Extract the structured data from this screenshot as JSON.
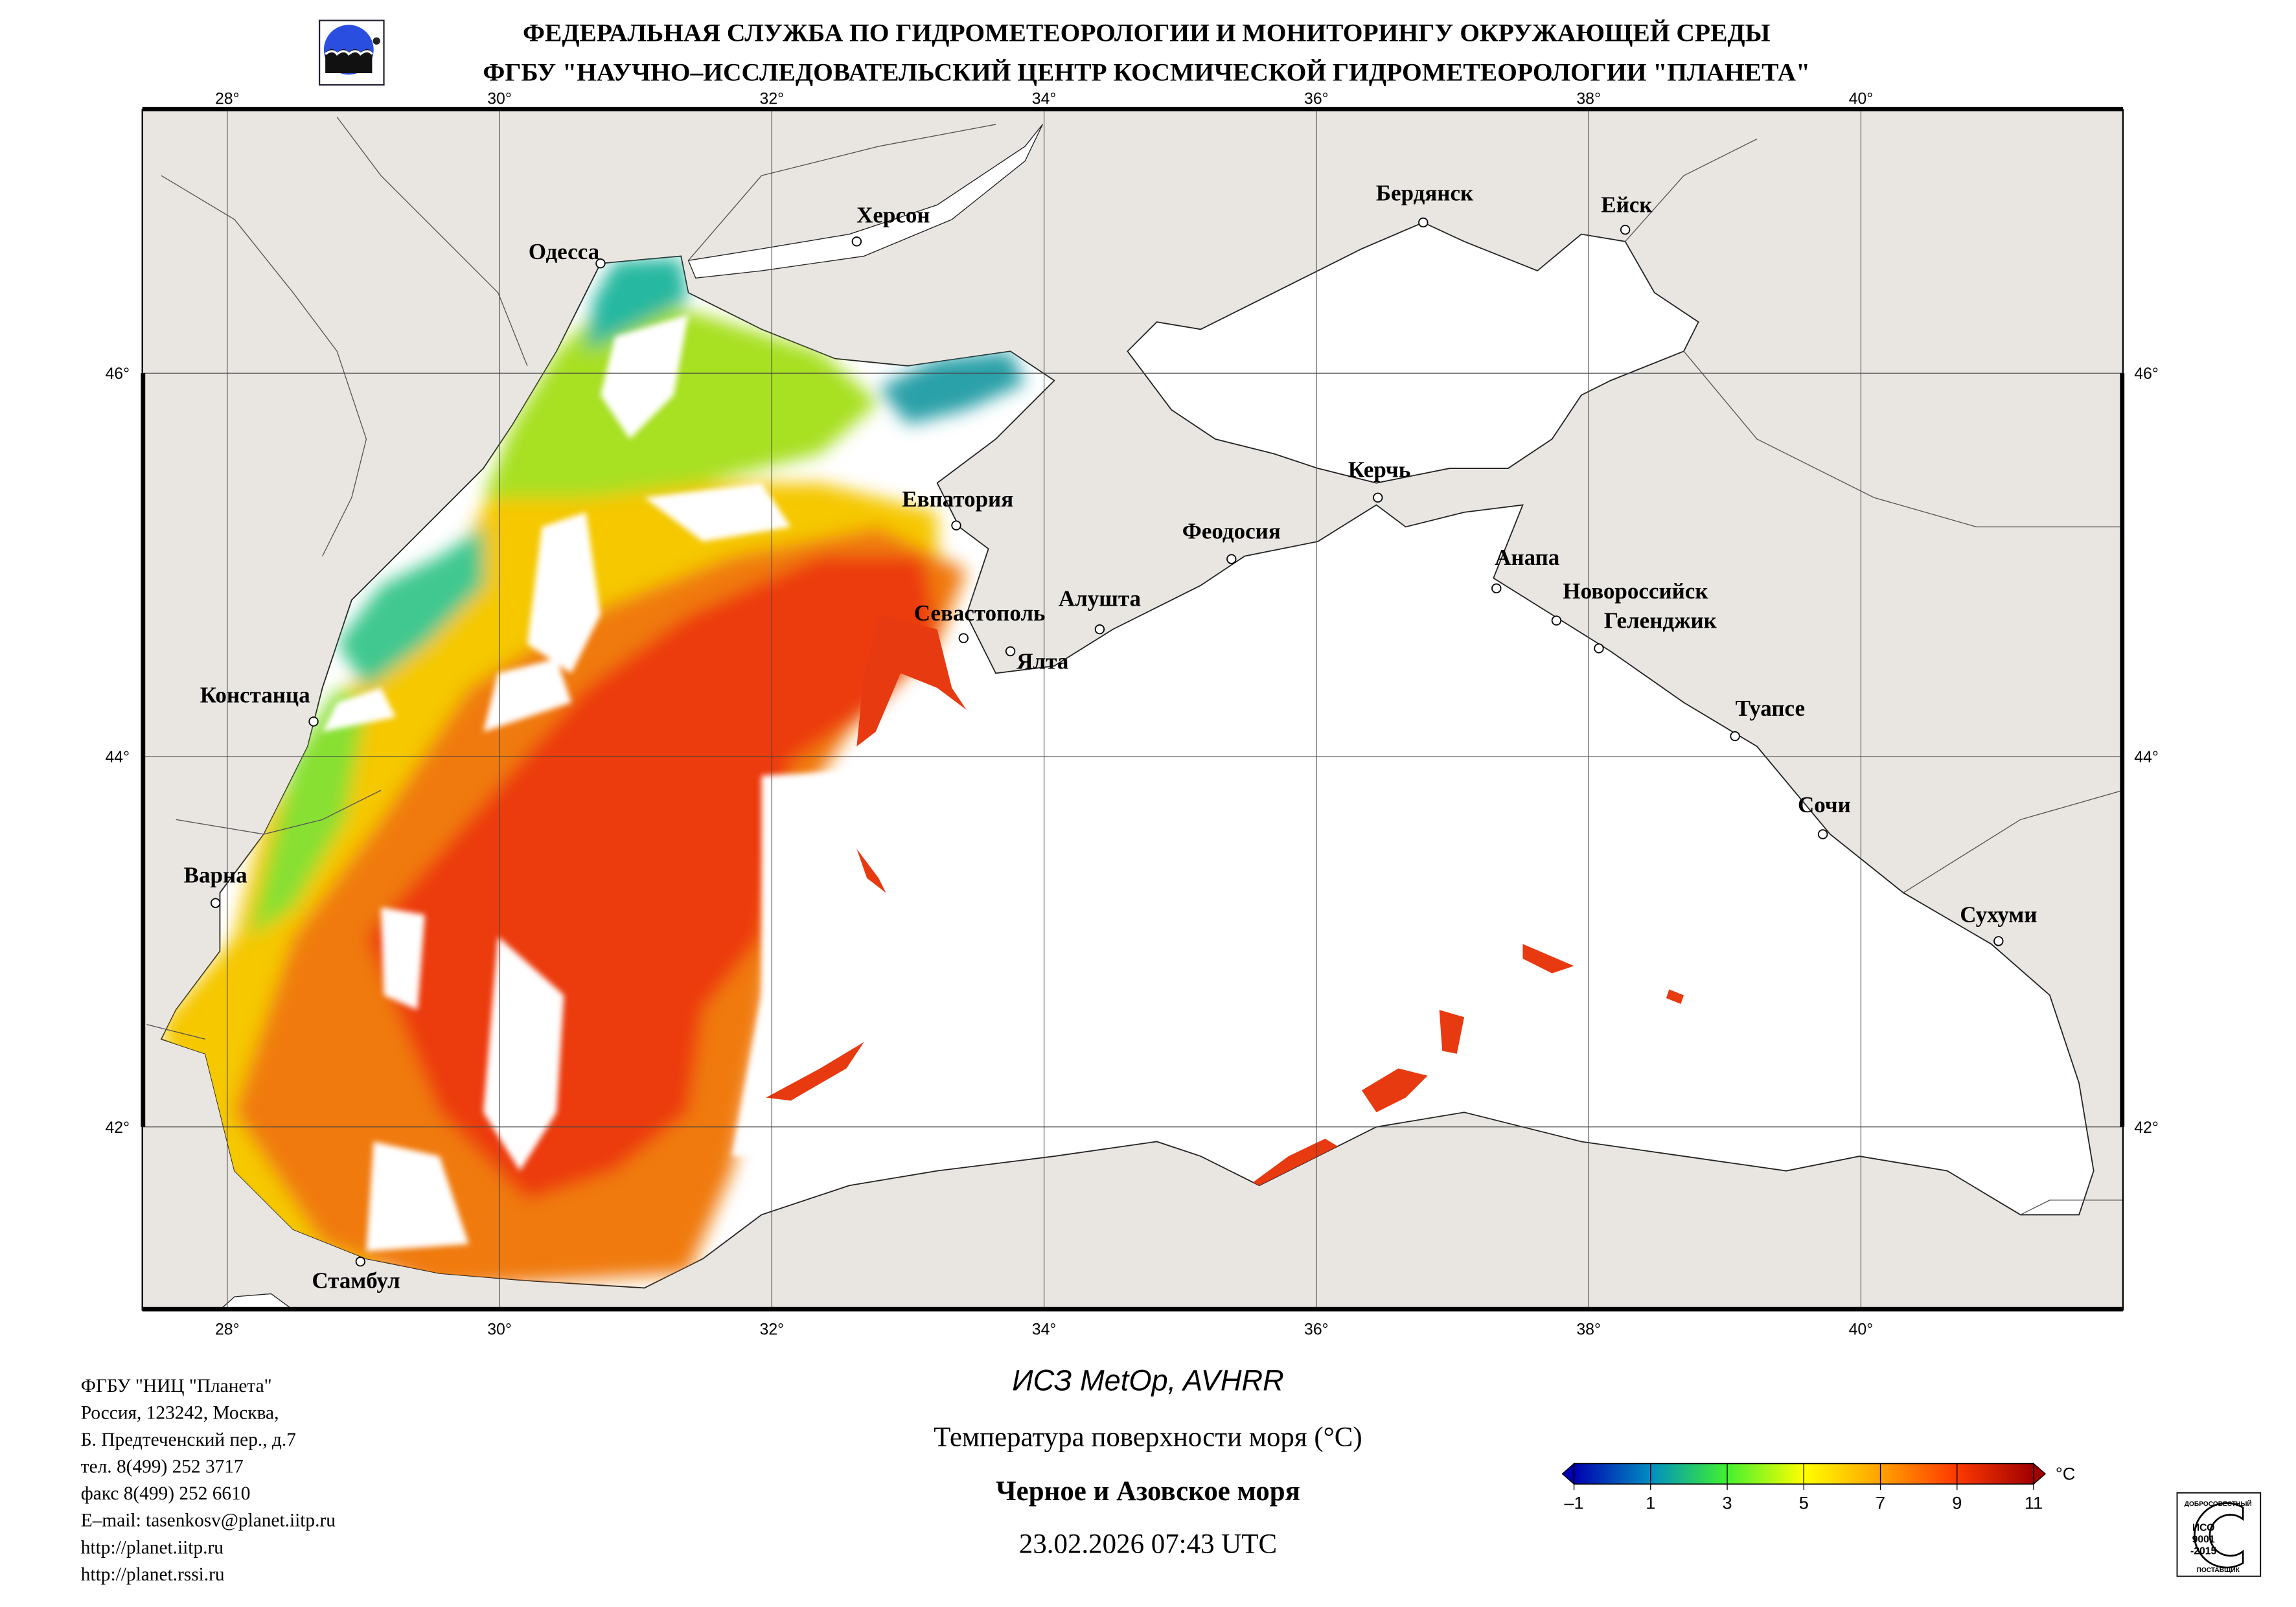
{
  "header": {
    "line1": "ФЕДЕРАЛЬНАЯ СЛУЖБА ПО ГИДРОМЕТЕОРОЛОГИИ И МОНИТОРИНГУ ОКРУЖАЮЩЕЙ СРЕДЫ",
    "line2": "ФГБУ \"НАУЧНО–ИССЛЕДОВАТЕЛЬСКИЙ ЦЕНТР КОСМИЧЕСКОЙ ГИДРОМЕТЕОРОЛОГИИ \"ПЛАНЕТА\"",
    "logo_icon": "planeta-logo"
  },
  "map": {
    "lon_labels": [
      "28°",
      "30°",
      "32°",
      "34°",
      "36°",
      "38°",
      "40°"
    ],
    "lat_labels": [
      "46°",
      "44°",
      "42°"
    ],
    "colors": {
      "land": "#e9e6e2",
      "sea_no_data": "#ffffff",
      "grid": "#333333"
    },
    "cities": [
      "Одесса",
      "Херсон",
      "Бердянск",
      "Ейск",
      "Евпатория",
      "Керчь",
      "Феодосия",
      "Анапа",
      "Новороссийск",
      "Геленджик",
      "Севастополь",
      "Алушта",
      "Ялта",
      "Констанца",
      "Туапсе",
      "Сочи",
      "Варна",
      "Сухуми",
      "Стамбул"
    ]
  },
  "colorbar": {
    "ticks": [
      "–1",
      "1",
      "3",
      "5",
      "7",
      "9",
      "11"
    ],
    "unit": "°C",
    "range": [
      -1,
      11
    ],
    "colors": [
      "#0000b0",
      "#0090c0",
      "#40e040",
      "#ffff00",
      "#ffc000",
      "#ff4000",
      "#a00000"
    ]
  },
  "footer": {
    "contact": [
      "ФГБУ \"НИЦ \"Планета\"",
      "Россия, 123242, Москва,",
      "Б. Предтеченский пер., д.7",
      "тел. 8(499) 252 3717",
      "факс 8(499) 252 6610",
      "E–mail: tasenkosv@planet.iitp.ru",
      "http://planet.iitp.ru",
      "http://planet.rssi.ru"
    ],
    "satellite": "ИСЗ MetOp, AVHRR",
    "product": "Температура поверхности моря (°C)",
    "region": "Черное и Азовское моря",
    "datetime": "23.02.2026 07:43 UTC"
  },
  "iso_badge": {
    "top": "ДОБРОСОВЕСТНЫЙ",
    "l1": "ИСО",
    "l2": "9001",
    "l3": "-2015",
    "bottom": "ПОСТАВЩИК"
  }
}
